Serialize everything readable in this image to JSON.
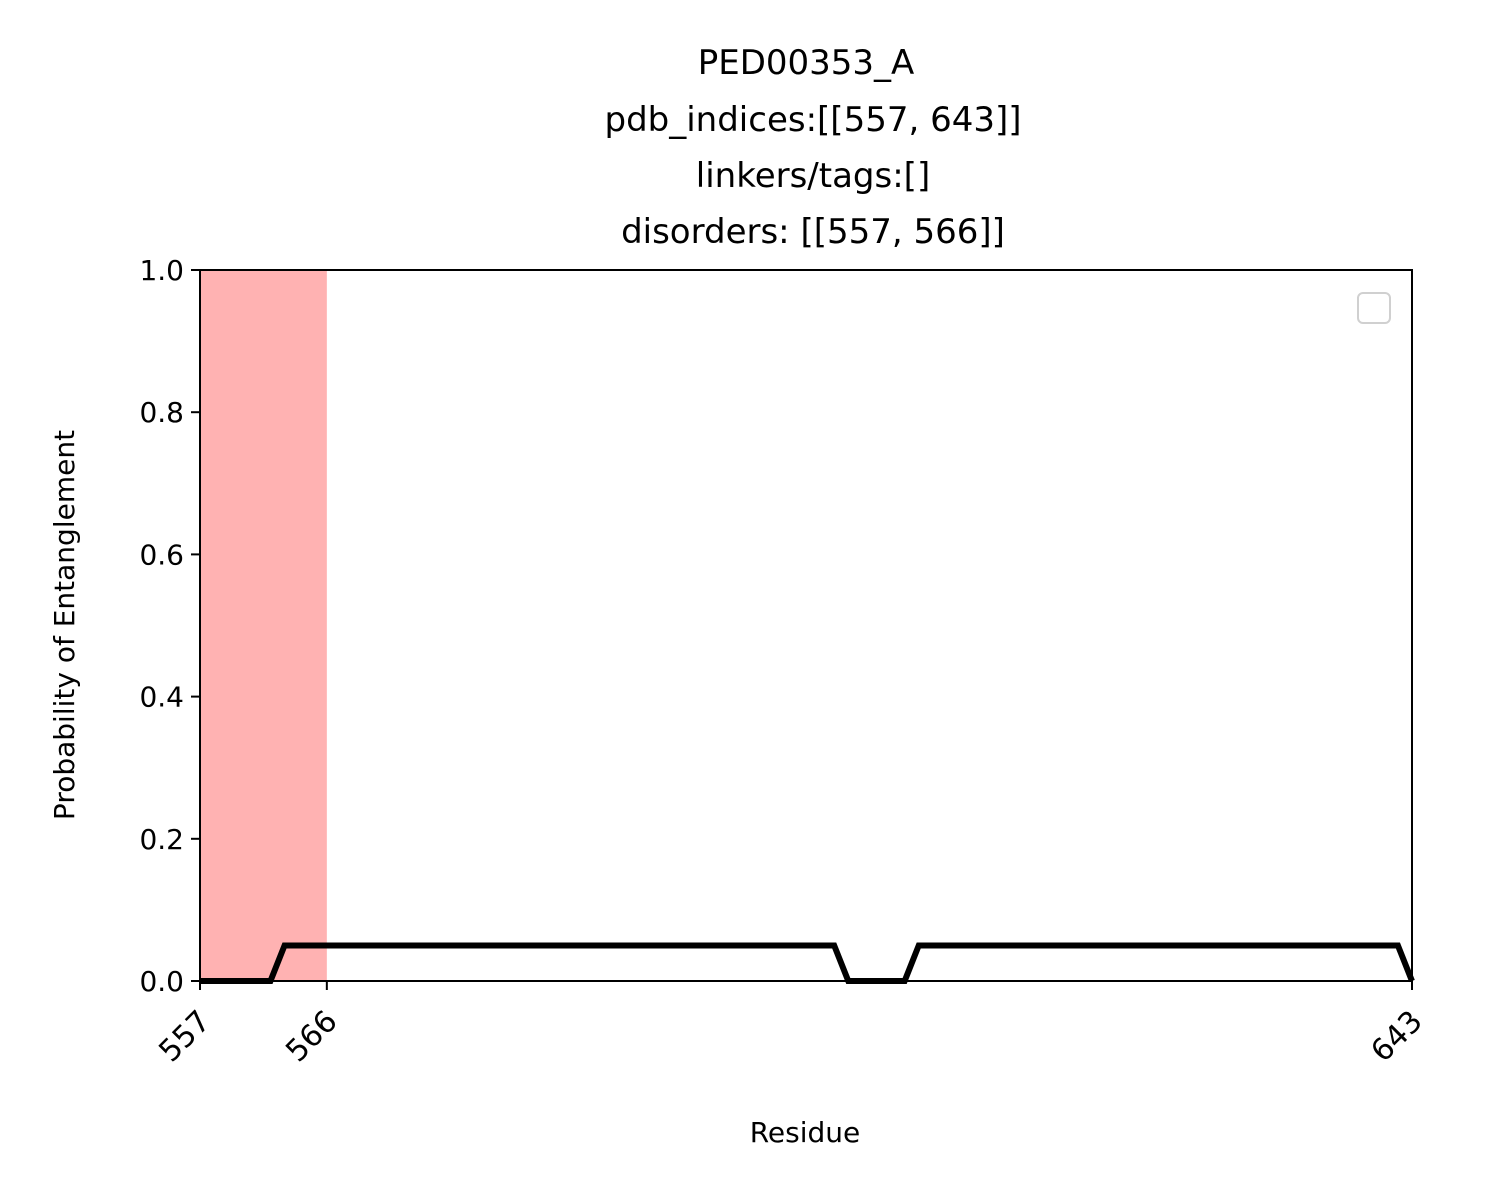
{
  "chart_data": {
    "type": "line",
    "title_lines": [
      "PED00353_A",
      "pdb_indices:[[557, 643]]",
      "linkers/tags:[]",
      "disorders: [[557, 566]]"
    ],
    "xlabel": "Residue",
    "ylabel": "Probability of Entanglement",
    "xlim": [
      557,
      643
    ],
    "ylim": [
      0,
      1
    ],
    "xticks": [
      557,
      566,
      643
    ],
    "xtick_labels": [
      "557",
      "566",
      "643"
    ],
    "yticks": [
      0,
      0.2,
      0.4,
      0.6,
      0.8,
      1.0
    ],
    "ytick_labels": [
      "0.0",
      "0.2",
      "0.4",
      "0.6",
      "0.8",
      "1.0"
    ],
    "grid": false,
    "legend": {
      "placement": "upper right",
      "entries": []
    },
    "shaded_regions": [
      {
        "x_start": 557,
        "x_end": 566,
        "color": "#ff0000",
        "alpha": 0.3
      }
    ],
    "series": [
      {
        "color": "#000000",
        "x": [
          557,
          562,
          563,
          602,
          603,
          607,
          608,
          642,
          643
        ],
        "y": [
          0,
          0,
          0.05,
          0.05,
          0,
          0,
          0.05,
          0.05,
          0
        ]
      }
    ]
  }
}
